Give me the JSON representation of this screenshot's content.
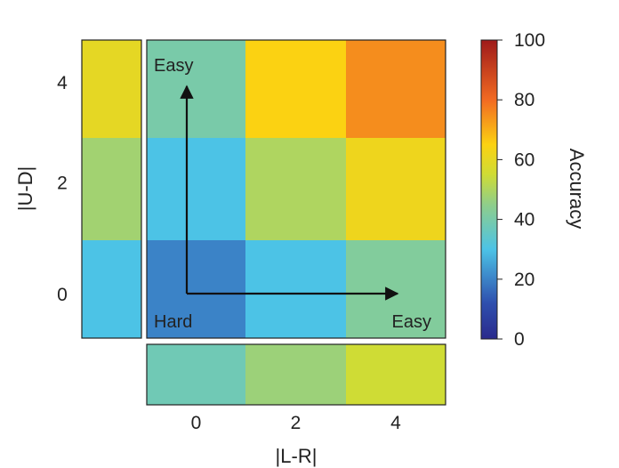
{
  "chart_data": {
    "type": "heatmap",
    "x_ticks": [
      "0",
      "2",
      "4"
    ],
    "y_ticks": [
      "0",
      "2",
      "4"
    ],
    "xlabel": "|L-R|",
    "ylabel": "|U-D|",
    "main": [
      [
        20,
        30,
        42
      ],
      [
        30,
        50,
        62
      ],
      [
        40,
        65,
        75
      ]
    ],
    "left_marginal": [
      30,
      48,
      60
    ],
    "bottom_marginal": [
      38,
      47,
      55
    ],
    "colorbar": {
      "label": "Accuracy",
      "min": 0,
      "max": 100,
      "ticks": [
        "0",
        "20",
        "40",
        "60",
        "80",
        "100"
      ],
      "tick_values": [
        0,
        20,
        40,
        60,
        80,
        100
      ]
    },
    "annotations": {
      "easy_top": "Easy",
      "hard": "Hard",
      "easy_right": "Easy"
    }
  }
}
